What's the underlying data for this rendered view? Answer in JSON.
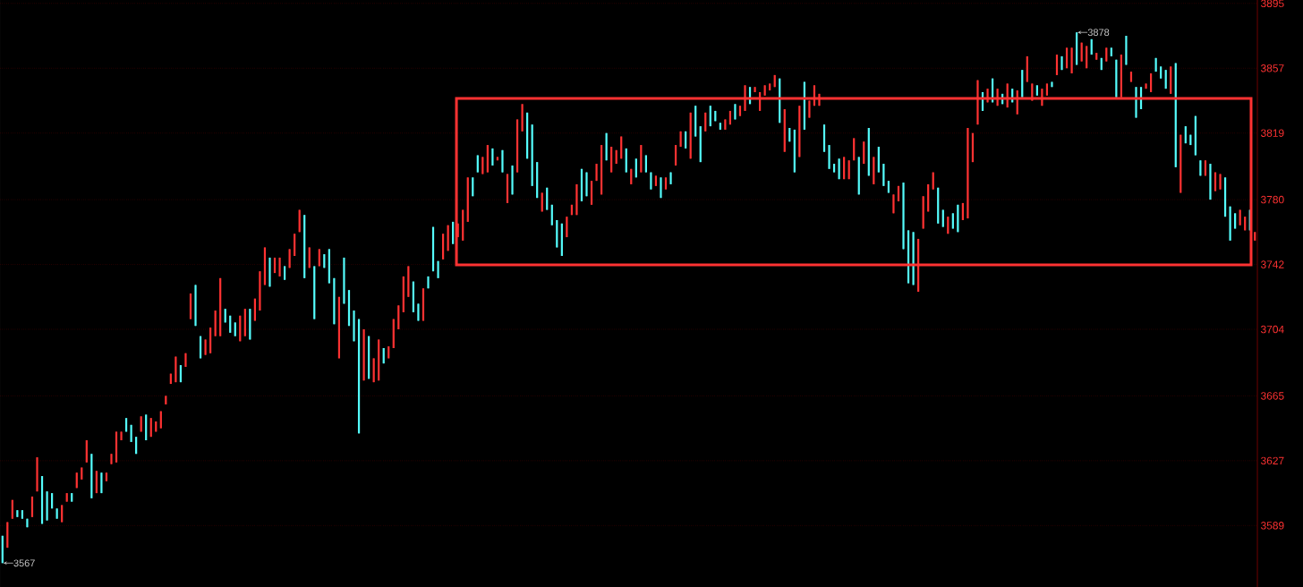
{
  "chart_data": {
    "type": "candlestick",
    "categories": [
      null,
      null,
      null,
      null,
      null,
      null,
      null,
      null,
      null,
      null,
      null,
      null,
      null,
      null,
      null,
      null,
      null,
      null,
      null,
      null,
      null,
      null,
      null,
      null,
      null,
      null,
      null,
      null,
      null,
      null,
      null,
      null,
      null,
      null,
      null,
      null,
      null,
      null,
      null,
      null,
      null,
      null,
      null,
      null,
      null,
      null,
      null,
      null,
      null,
      null,
      null,
      null,
      null,
      null,
      null,
      null,
      null,
      null,
      null,
      null,
      null,
      null,
      null,
      null,
      null,
      null,
      null,
      null,
      null,
      null,
      null,
      null,
      null,
      null,
      null,
      null,
      null,
      null,
      null,
      null,
      null,
      null,
      null,
      null,
      null,
      null,
      null,
      null,
      null,
      null,
      null,
      null,
      null,
      null,
      null,
      null,
      null,
      null,
      null,
      null,
      null,
      null,
      null,
      null,
      null,
      null,
      null,
      null,
      null,
      null,
      null,
      null,
      null,
      null,
      null,
      null,
      null,
      null,
      null,
      null,
      null,
      null,
      null,
      null,
      null,
      null,
      null,
      null,
      null,
      null,
      null,
      null,
      null,
      null,
      null,
      null,
      null,
      null,
      null,
      null,
      null,
      null,
      null,
      null,
      null,
      null,
      null,
      null,
      null,
      null,
      null,
      null,
      null,
      null,
      null,
      null,
      null,
      null,
      null,
      null,
      null,
      null,
      null,
      null,
      null,
      null,
      null,
      null,
      null,
      null,
      null,
      null,
      null,
      null,
      null,
      null,
      null,
      null,
      null,
      null,
      null,
      null,
      null,
      null,
      null,
      null,
      null,
      null,
      null,
      null,
      null,
      null,
      null,
      null,
      null,
      null,
      null,
      null,
      null,
      null,
      null,
      null,
      null,
      null,
      null,
      null,
      null,
      null,
      null,
      null,
      null,
      null,
      null,
      null,
      null,
      null,
      null,
      null,
      null,
      null,
      null,
      null,
      null,
      null,
      null,
      null,
      null,
      null,
      null,
      null,
      null,
      null,
      null,
      null,
      null,
      null,
      null,
      null,
      null,
      null,
      null,
      null,
      null,
      null,
      null,
      null,
      null,
      null,
      null,
      null,
      null,
      null,
      null,
      null
    ],
    "ohlc": [
      [
        3583,
        3583,
        3567,
        3567
      ],
      [
        3576,
        3591,
        3576,
        3591
      ],
      [
        3593,
        3604,
        3593,
        3604
      ],
      [
        3598,
        3598,
        3594,
        3594
      ],
      [
        3598,
        3598,
        3593,
        3593
      ],
      [
        3593,
        3593,
        3588,
        3588
      ],
      [
        3594,
        3606,
        3594,
        3606
      ],
      [
        3609,
        3629,
        3609,
        3629
      ],
      [
        3618,
        3618,
        3590,
        3590
      ],
      [
        3609,
        3609,
        3592,
        3592
      ],
      [
        3608,
        3608,
        3599,
        3599
      ],
      [
        3599,
        3599,
        3593,
        3593
      ],
      [
        3591,
        3601,
        3591,
        3601
      ],
      [
        3603,
        3608,
        3603,
        3608
      ],
      [
        3608,
        3608,
        3603,
        3603
      ],
      [
        3611,
        3620,
        3611,
        3620
      ],
      [
        3616,
        3623,
        3616,
        3623
      ],
      [
        3626,
        3639,
        3626,
        3639
      ],
      [
        3631,
        3631,
        3605,
        3605
      ],
      [
        3608,
        3621,
        3608,
        3621
      ],
      [
        3620,
        3620,
        3608,
        3608
      ],
      [
        3615,
        3620,
        3615,
        3620
      ],
      [
        3625,
        3631,
        3625,
        3631
      ],
      [
        3626,
        3644,
        3626,
        3644
      ],
      [
        3639,
        3644,
        3639,
        3644
      ],
      [
        3652,
        3652,
        3644,
        3644
      ],
      [
        3648,
        3648,
        3638,
        3638
      ],
      [
        3641,
        3641,
        3631,
        3631
      ],
      [
        3644,
        3653,
        3644,
        3653
      ],
      [
        3654,
        3654,
        3639,
        3639
      ],
      [
        3641,
        3652,
        3641,
        3652
      ],
      [
        3644,
        3650,
        3644,
        3650
      ],
      [
        3646,
        3656,
        3646,
        3656
      ],
      [
        3660,
        3665,
        3660,
        3665
      ],
      [
        3672,
        3678,
        3672,
        3678
      ],
      [
        3673,
        3688,
        3673,
        3688
      ],
      [
        3683,
        3683,
        3673,
        3673
      ],
      [
        3682,
        3690,
        3682,
        3690
      ],
      [
        3710,
        3725,
        3710,
        3725
      ],
      [
        3730,
        3730,
        3706,
        3706
      ],
      [
        3700,
        3700,
        3687,
        3687
      ],
      [
        3689,
        3698,
        3689,
        3698
      ],
      [
        3690,
        3705,
        3690,
        3705
      ],
      [
        3700,
        3715,
        3700,
        3715
      ],
      [
        3700,
        3734,
        3700,
        3734
      ],
      [
        3716,
        3716,
        3708,
        3708
      ],
      [
        3712,
        3712,
        3702,
        3702
      ],
      [
        3708,
        3708,
        3700,
        3700
      ],
      [
        3697,
        3712,
        3697,
        3712
      ],
      [
        3700,
        3716,
        3700,
        3716
      ],
      [
        3716,
        3716,
        3698,
        3698
      ],
      [
        3709,
        3722,
        3709,
        3722
      ],
      [
        3715,
        3738,
        3715,
        3738
      ],
      [
        3730,
        3752,
        3730,
        3752
      ],
      [
        3746,
        3746,
        3729,
        3729
      ],
      [
        3737,
        3746,
        3737,
        3746
      ],
      [
        3735,
        3746,
        3735,
        3746
      ],
      [
        3741,
        3741,
        3733,
        3733
      ],
      [
        3740,
        3751,
        3740,
        3751
      ],
      [
        3747,
        3760,
        3747,
        3760
      ],
      [
        3761,
        3774,
        3761,
        3774
      ],
      [
        3771,
        3771,
        3734,
        3734
      ],
      [
        3740,
        3752,
        3740,
        3752
      ],
      [
        3741,
        3741,
        3710,
        3710
      ],
      [
        3741,
        3751,
        3741,
        3751
      ],
      [
        3748,
        3748,
        3740,
        3740
      ],
      [
        3751,
        3751,
        3731,
        3731
      ],
      [
        3734,
        3734,
        3707,
        3707
      ],
      [
        3687,
        3723,
        3687,
        3723
      ],
      [
        3746,
        3746,
        3719,
        3719
      ],
      [
        3727,
        3727,
        3706,
        3706
      ],
      [
        3715,
        3715,
        3697,
        3697
      ],
      [
        3710,
        3710,
        3643,
        3643
      ],
      [
        3674,
        3704,
        3674,
        3704
      ],
      [
        3700,
        3700,
        3675,
        3675
      ],
      [
        3673,
        3687,
        3673,
        3687
      ],
      [
        3674,
        3698,
        3674,
        3698
      ],
      [
        3693,
        3693,
        3684,
        3684
      ],
      [
        3687,
        3694,
        3687,
        3694
      ],
      [
        3693,
        3710,
        3693,
        3710
      ],
      [
        3704,
        3718,
        3704,
        3718
      ],
      [
        3714,
        3735,
        3714,
        3735
      ],
      [
        3723,
        3741,
        3723,
        3741
      ],
      [
        3732,
        3732,
        3714,
        3714
      ],
      [
        3719,
        3719,
        3709,
        3709
      ],
      [
        3709,
        3728,
        3709,
        3728
      ],
      [
        3735,
        3735,
        3728,
        3728
      ],
      [
        3764,
        3764,
        3738,
        3738
      ],
      [
        3744,
        3744,
        3734,
        3734
      ],
      [
        3745,
        3760,
        3745,
        3760
      ],
      [
        3750,
        3765,
        3750,
        3765
      ],
      [
        3767,
        3767,
        3754,
        3754
      ],
      [
        3758,
        3766,
        3758,
        3766
      ],
      [
        3756,
        3774,
        3756,
        3774
      ],
      [
        3767,
        3793,
        3767,
        3793
      ],
      [
        3793,
        3793,
        3782,
        3782
      ],
      [
        3806,
        3806,
        3796,
        3796
      ],
      [
        3795,
        3805,
        3795,
        3805
      ],
      [
        3796,
        3812,
        3796,
        3812
      ],
      [
        3810,
        3810,
        3800,
        3800
      ],
      [
        3803,
        3805,
        3803,
        3805
      ],
      [
        3809,
        3809,
        3796,
        3796
      ],
      [
        3778,
        3795,
        3778,
        3795
      ],
      [
        3800,
        3800,
        3783,
        3783
      ],
      [
        3796,
        3827,
        3796,
        3827
      ],
      [
        3820,
        3836,
        3820,
        3836
      ],
      [
        3831,
        3831,
        3804,
        3804
      ],
      [
        3824,
        3824,
        3788,
        3788
      ],
      [
        3802,
        3802,
        3781,
        3781
      ],
      [
        3773,
        3784,
        3773,
        3784
      ],
      [
        3787,
        3787,
        3774,
        3774
      ],
      [
        3777,
        3777,
        3765,
        3765
      ],
      [
        3768,
        3768,
        3752,
        3752
      ],
      [
        3766,
        3766,
        3747,
        3747
      ],
      [
        3758,
        3770,
        3758,
        3770
      ],
      [
        3771,
        3777,
        3771,
        3777
      ],
      [
        3771,
        3789,
        3771,
        3789
      ],
      [
        3798,
        3798,
        3779,
        3779
      ],
      [
        3796,
        3796,
        3782,
        3782
      ],
      [
        3777,
        3791,
        3777,
        3791
      ],
      [
        3791,
        3801,
        3791,
        3801
      ],
      [
        3783,
        3812,
        3783,
        3812
      ],
      [
        3819,
        3819,
        3803,
        3803
      ],
      [
        3796,
        3811,
        3796,
        3811
      ],
      [
        3801,
        3809,
        3801,
        3809
      ],
      [
        3804,
        3817,
        3804,
        3817
      ],
      [
        3810,
        3810,
        3796,
        3796
      ],
      [
        3789,
        3798,
        3789,
        3798
      ],
      [
        3804,
        3804,
        3793,
        3793
      ],
      [
        3796,
        3812,
        3796,
        3812
      ],
      [
        3806,
        3806,
        3796,
        3796
      ],
      [
        3796,
        3796,
        3786,
        3786
      ],
      [
        3788,
        3794,
        3788,
        3794
      ],
      [
        3793,
        3793,
        3781,
        3781
      ],
      [
        3786,
        3793,
        3786,
        3793
      ],
      [
        3796,
        3796,
        3789,
        3789
      ],
      [
        3800,
        3812,
        3800,
        3812
      ],
      [
        3811,
        3820,
        3811,
        3820
      ],
      [
        3820,
        3820,
        3810,
        3810
      ],
      [
        3804,
        3831,
        3804,
        3831
      ],
      [
        3835,
        3835,
        3817,
        3817
      ],
      [
        3823,
        3823,
        3802,
        3802
      ],
      [
        3820,
        3831,
        3820,
        3831
      ],
      [
        3835,
        3835,
        3823,
        3823
      ],
      [
        3832,
        3832,
        3826,
        3826
      ],
      [
        3825,
        3825,
        3821,
        3821
      ],
      [
        3821,
        3827,
        3821,
        3827
      ],
      [
        3824,
        3832,
        3824,
        3832
      ],
      [
        3836,
        3836,
        3827,
        3827
      ],
      [
        3829,
        3835,
        3829,
        3835
      ],
      [
        3832,
        3847,
        3832,
        3847
      ],
      [
        3846,
        3846,
        3836,
        3836
      ],
      [
        3843,
        3846,
        3843,
        3846
      ],
      [
        3832,
        3843,
        3832,
        3843
      ],
      [
        3841,
        3847,
        3841,
        3847
      ],
      [
        3844,
        3848,
        3844,
        3848
      ],
      [
        3846,
        3853,
        3846,
        3853
      ],
      [
        3851,
        3851,
        3825,
        3825
      ],
      [
        3808,
        3833,
        3808,
        3833
      ],
      [
        3822,
        3822,
        3814,
        3814
      ],
      [
        3821,
        3821,
        3796,
        3796
      ],
      [
        3805,
        3835,
        3805,
        3835
      ],
      [
        3849,
        3849,
        3821,
        3821
      ],
      [
        3828,
        3838,
        3828,
        3838
      ],
      [
        3835,
        3847,
        3835,
        3847
      ],
      [
        3835,
        3842,
        3835,
        3842
      ],
      [
        3824,
        3824,
        3808,
        3808
      ],
      [
        3812,
        3812,
        3798,
        3798
      ],
      [
        3801,
        3801,
        3796,
        3796
      ],
      [
        3804,
        3804,
        3792,
        3792
      ],
      [
        3792,
        3805,
        3792,
        3805
      ],
      [
        3792,
        3803,
        3792,
        3803
      ],
      [
        3803,
        3816,
        3803,
        3816
      ],
      [
        3805,
        3805,
        3783,
        3783
      ],
      [
        3801,
        3814,
        3801,
        3814
      ],
      [
        3822,
        3822,
        3794,
        3794
      ],
      [
        3789,
        3805,
        3789,
        3805
      ],
      [
        3811,
        3811,
        3796,
        3796
      ],
      [
        3801,
        3801,
        3788,
        3788
      ],
      [
        3791,
        3791,
        3784,
        3784
      ],
      [
        3772,
        3783,
        3772,
        3783
      ],
      [
        3779,
        3788,
        3779,
        3788
      ],
      [
        3790,
        3790,
        3751,
        3751
      ],
      [
        3762,
        3762,
        3731,
        3731
      ],
      [
        3761,
        3761,
        3730,
        3730
      ],
      [
        3726,
        3757,
        3726,
        3757
      ],
      [
        3763,
        3782,
        3763,
        3782
      ],
      [
        3773,
        3789,
        3773,
        3789
      ],
      [
        3786,
        3796,
        3786,
        3796
      ],
      [
        3787,
        3787,
        3766,
        3766
      ],
      [
        3774,
        3774,
        3764,
        3764
      ],
      [
        3760,
        3770,
        3760,
        3770
      ],
      [
        3772,
        3772,
        3763,
        3763
      ],
      [
        3777,
        3777,
        3761,
        3761
      ],
      [
        3768,
        3778,
        3768,
        3778
      ],
      [
        3769,
        3822,
        3769,
        3822
      ],
      [
        3802,
        3819,
        3802,
        3819
      ],
      [
        3824,
        3850,
        3824,
        3850
      ],
      [
        3843,
        3843,
        3832,
        3832
      ],
      [
        3837,
        3845,
        3837,
        3845
      ],
      [
        3851,
        3851,
        3837,
        3837
      ],
      [
        3835,
        3845,
        3835,
        3845
      ],
      [
        3842,
        3842,
        3836,
        3836
      ],
      [
        3834,
        3848,
        3834,
        3848
      ],
      [
        3845,
        3845,
        3837,
        3837
      ],
      [
        3830,
        3844,
        3830,
        3844
      ],
      [
        3856,
        3856,
        3840,
        3840
      ],
      [
        3849,
        3864,
        3849,
        3864
      ],
      [
        3838,
        3848,
        3838,
        3848
      ],
      [
        3847,
        3847,
        3841,
        3841
      ],
      [
        3835,
        3845,
        3835,
        3845
      ],
      [
        3841,
        3848,
        3841,
        3848
      ],
      [
        3849,
        3849,
        3846,
        3846
      ],
      [
        3853,
        3865,
        3853,
        3865
      ],
      [
        3864,
        3864,
        3856,
        3856
      ],
      [
        3857,
        3869,
        3857,
        3869
      ],
      [
        3854,
        3869,
        3854,
        3869
      ],
      [
        3878,
        3878,
        3859,
        3859
      ],
      [
        3861,
        3872,
        3861,
        3872
      ],
      [
        3857,
        3870,
        3857,
        3870
      ],
      [
        3874,
        3874,
        3865,
        3865
      ],
      [
        3862,
        3866,
        3862,
        3866
      ],
      [
        3863,
        3863,
        3856,
        3856
      ],
      [
        3861,
        3869,
        3861,
        3869
      ],
      [
        3869,
        3869,
        3864,
        3864
      ],
      [
        3862,
        3862,
        3840,
        3840
      ],
      [
        3840,
        3865,
        3840,
        3865
      ],
      [
        3876,
        3876,
        3859,
        3859
      ],
      [
        3849,
        3855,
        3849,
        3855
      ],
      [
        3846,
        3846,
        3828,
        3828
      ],
      [
        3846,
        3846,
        3833,
        3833
      ],
      [
        3845,
        3848,
        3845,
        3848
      ],
      [
        3843,
        3854,
        3843,
        3854
      ],
      [
        3863,
        3863,
        3855,
        3855
      ],
      [
        3858,
        3858,
        3851,
        3851
      ],
      [
        3856,
        3856,
        3845,
        3845
      ],
      [
        3842,
        3858,
        3842,
        3858
      ],
      [
        3860,
        3860,
        3799,
        3799
      ],
      [
        3784,
        3818,
        3784,
        3818
      ],
      [
        3823,
        3823,
        3813,
        3813
      ],
      [
        3818,
        3818,
        3812,
        3812
      ],
      [
        3829,
        3829,
        3806,
        3806
      ],
      [
        3803,
        3803,
        3794,
        3794
      ],
      [
        3794,
        3803,
        3794,
        3803
      ],
      [
        3801,
        3801,
        3780,
        3780
      ],
      [
        3785,
        3796,
        3785,
        3796
      ],
      [
        3786,
        3795,
        3786,
        3795
      ],
      [
        3793,
        3793,
        3770,
        3770
      ],
      [
        3776,
        3776,
        3756,
        3756
      ],
      [
        3772,
        3772,
        3763,
        3763
      ],
      [
        3765,
        3774,
        3765,
        3774
      ],
      [
        3762,
        3770,
        3762,
        3770
      ],
      [
        3774,
        3774,
        3762,
        3762
      ],
      [
        3756,
        3761,
        3756,
        3761
      ]
    ],
    "ylim": [
      3553,
      3897
    ],
    "yticks": [
      3589,
      3627,
      3665,
      3704,
      3742,
      3780,
      3819,
      3857,
      3895
    ],
    "grid": "y",
    "annotations": [
      "3878",
      "3567"
    ]
  }
}
